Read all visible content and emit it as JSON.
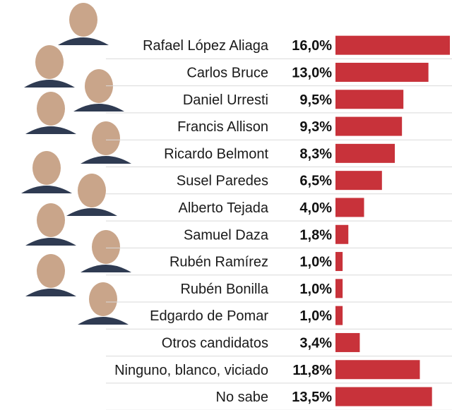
{
  "chart_data": {
    "type": "bar",
    "orientation": "horizontal",
    "categories": [
      "Rafael López Aliaga",
      "Carlos Bruce",
      "Daniel Urresti",
      "Francis Allison",
      "Ricardo Belmont",
      "Susel Paredes",
      "Alberto Tejada",
      "Samuel Daza",
      "Rubén Ramírez",
      "Rubén Bonilla",
      "Edgardo de Pomar",
      "Otros candidatos",
      "Ninguno, blanco, viciado",
      "No sabe"
    ],
    "values": [
      16.0,
      13.0,
      9.5,
      9.3,
      8.3,
      6.5,
      4.0,
      1.8,
      1.0,
      1.0,
      1.0,
      3.4,
      11.8,
      13.5
    ],
    "value_labels": [
      "16,0%",
      "13,0%",
      "9,5%",
      "9,3%",
      "8,3%",
      "6,5%",
      "4,0%",
      "1,8%",
      "1,0%",
      "1,0%",
      "1,0%",
      "3,4%",
      "11,8%",
      "13,5%"
    ],
    "xlim": [
      0,
      16.0
    ],
    "bar_color": "#c8323a",
    "grid": false
  },
  "photos": [
    {
      "name": "rafael-lopez-aliaga-photo"
    },
    {
      "name": "carlos-bruce-photo"
    },
    {
      "name": "daniel-urresti-photo"
    },
    {
      "name": "francis-allison-photo"
    },
    {
      "name": "ricardo-belmont-photo"
    },
    {
      "name": "susel-paredes-photo"
    },
    {
      "name": "alberto-tejada-photo"
    },
    {
      "name": "samuel-daza-photo"
    },
    {
      "name": "ruben-ramirez-photo"
    },
    {
      "name": "ruben-bonilla-photo"
    },
    {
      "name": "edgardo-de-pomar-photo"
    }
  ]
}
